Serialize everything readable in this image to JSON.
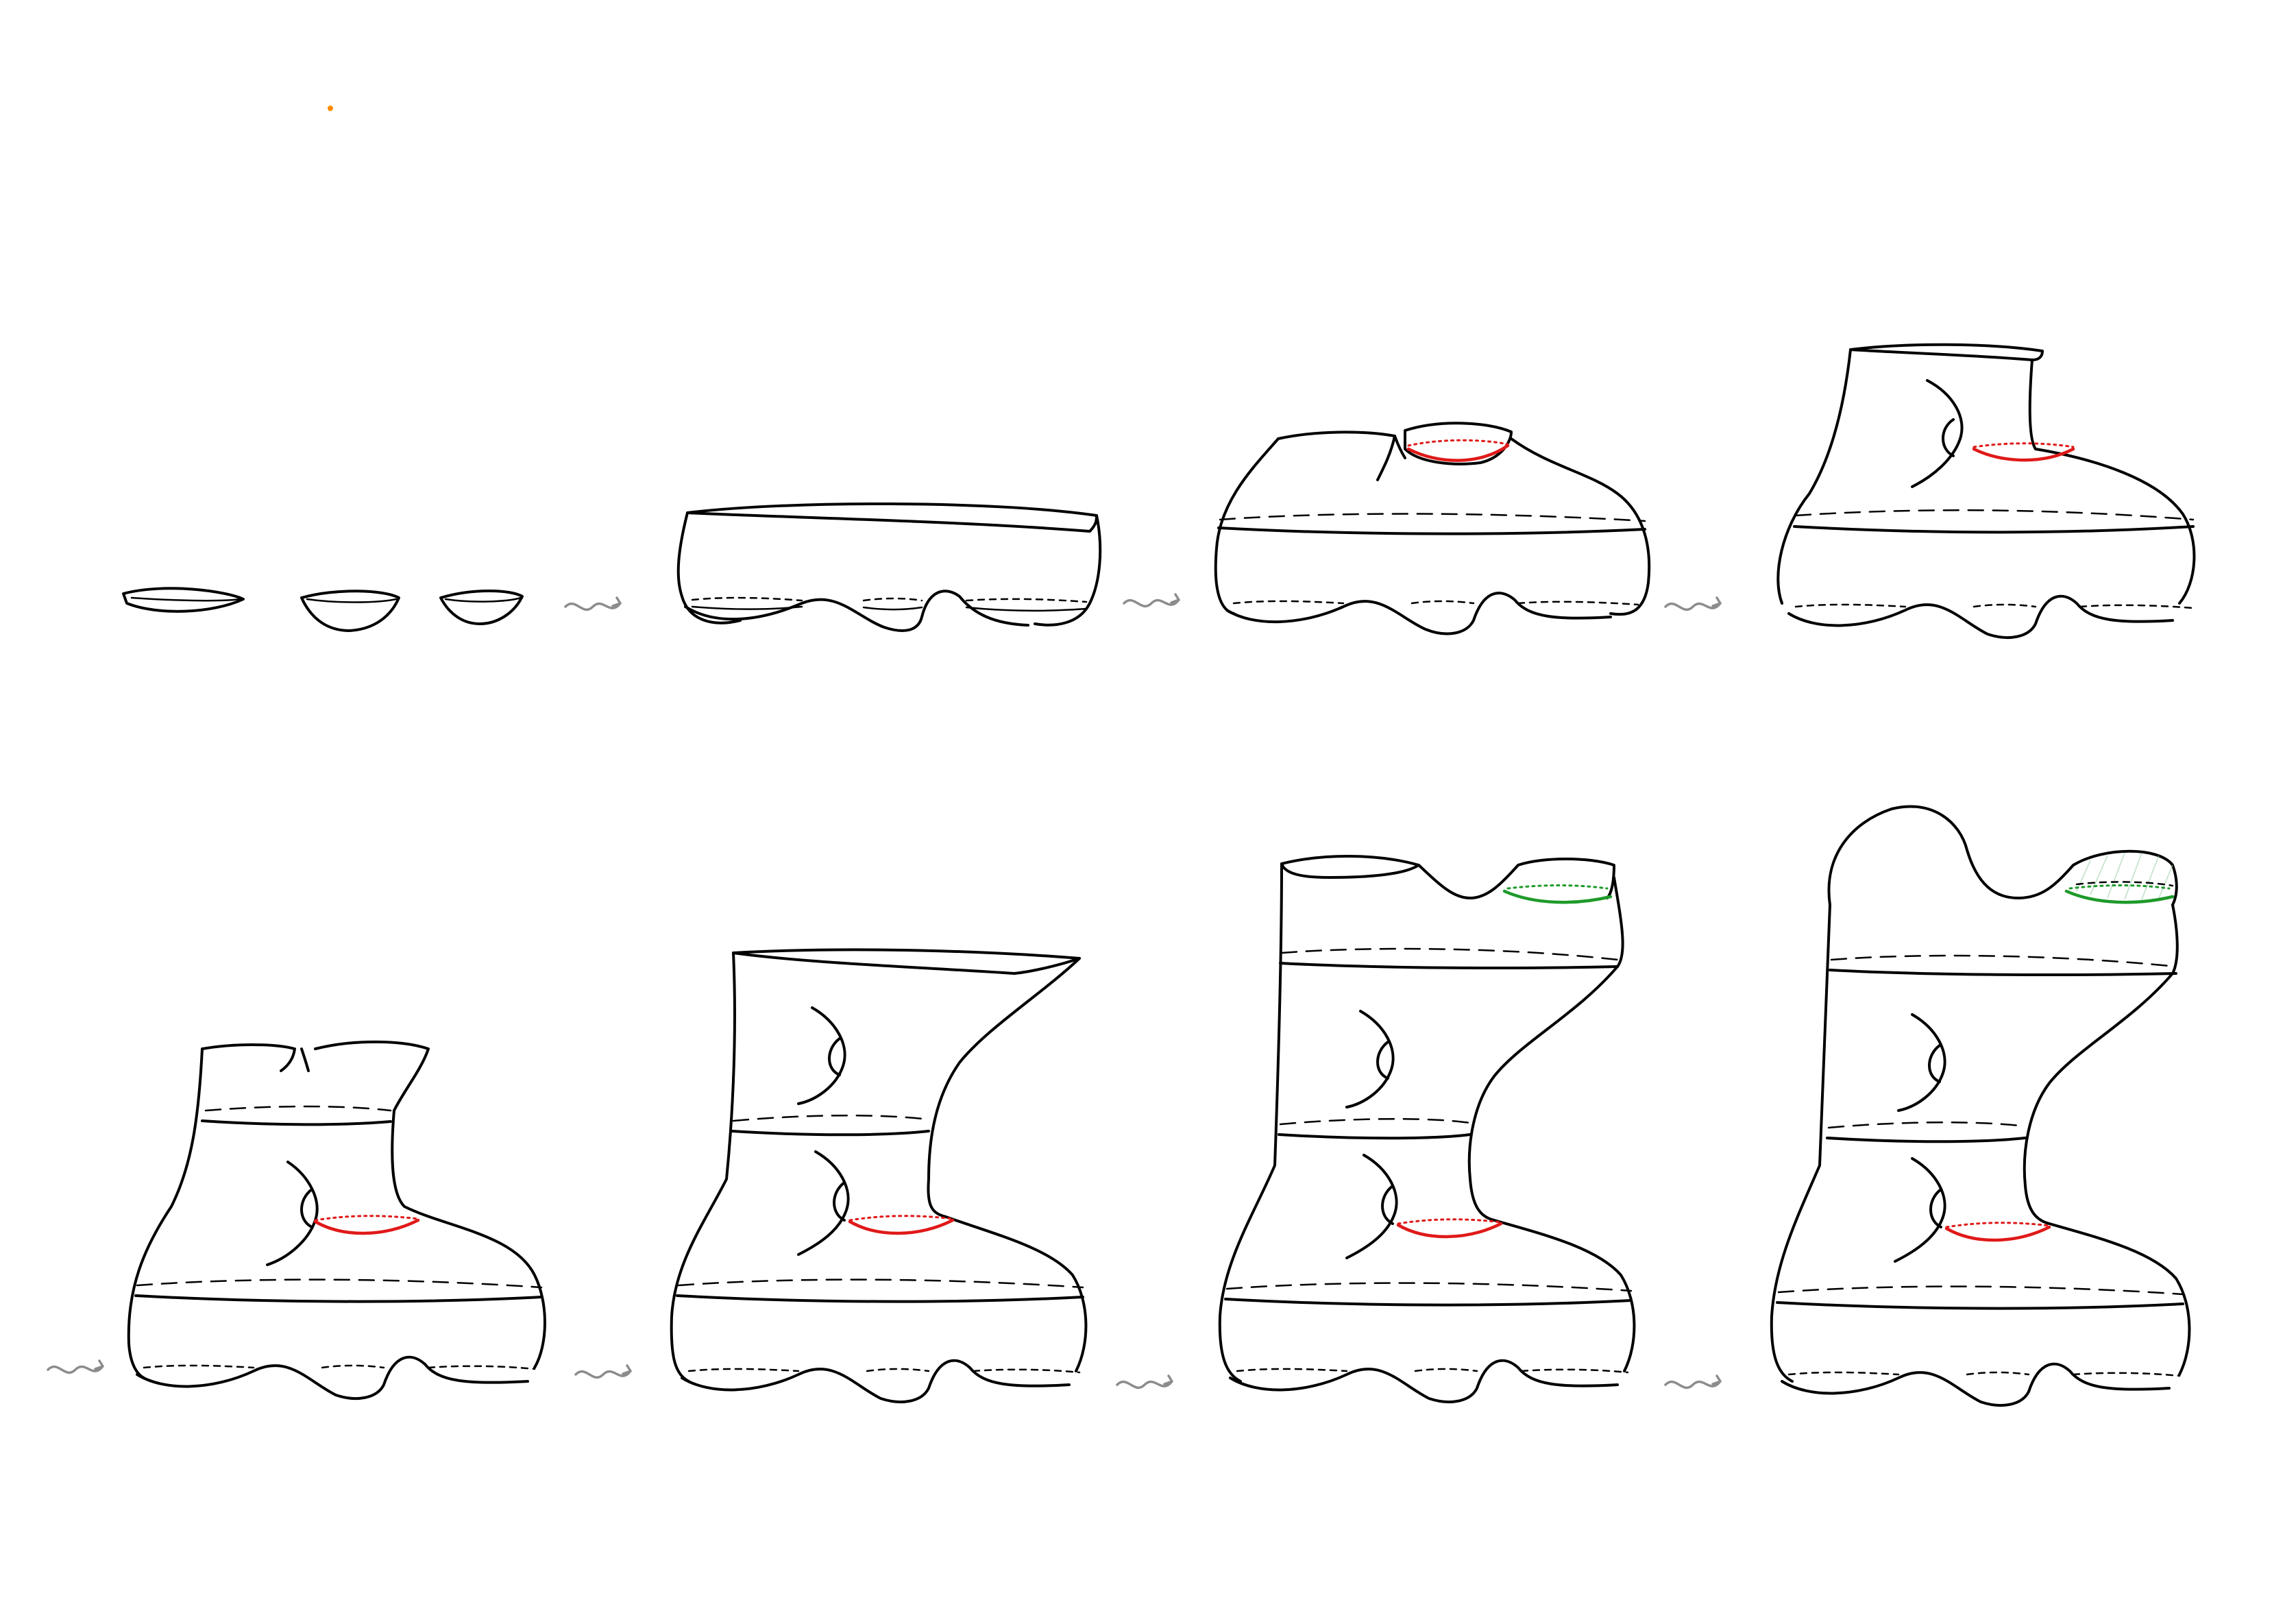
{
  "colors": {
    "ink": "#000000",
    "arrow": "#8c8c8c",
    "gluing_curve": "#e01919",
    "boundary_curve": "#1e9a2a",
    "hatch": "#8fc79a",
    "speck": "#ff8c00"
  },
  "diagram": {
    "rows": 2,
    "stages_per_row": 4,
    "connectors": "squiggly-arrow",
    "stages": [
      {
        "row": 1,
        "index": 1,
        "components": 3,
        "gluing_curve": false,
        "boundary_disk": false
      },
      {
        "row": 1,
        "index": 2,
        "components": 1,
        "gluing_curve": false,
        "boundary_disk": false
      },
      {
        "row": 1,
        "index": 3,
        "components": 1,
        "gluing_curve": true,
        "boundary_disk": false
      },
      {
        "row": 1,
        "index": 4,
        "components": 1,
        "gluing_curve": true,
        "boundary_disk": false
      },
      {
        "row": 2,
        "index": 1,
        "components": 1,
        "gluing_curve": true,
        "boundary_disk": false
      },
      {
        "row": 2,
        "index": 2,
        "components": 1,
        "gluing_curve": true,
        "boundary_disk": false
      },
      {
        "row": 2,
        "index": 3,
        "components": 1,
        "gluing_curve": true,
        "boundary_disk": false
      },
      {
        "row": 2,
        "index": 4,
        "components": 1,
        "gluing_curve": true,
        "boundary_disk": true
      }
    ]
  }
}
